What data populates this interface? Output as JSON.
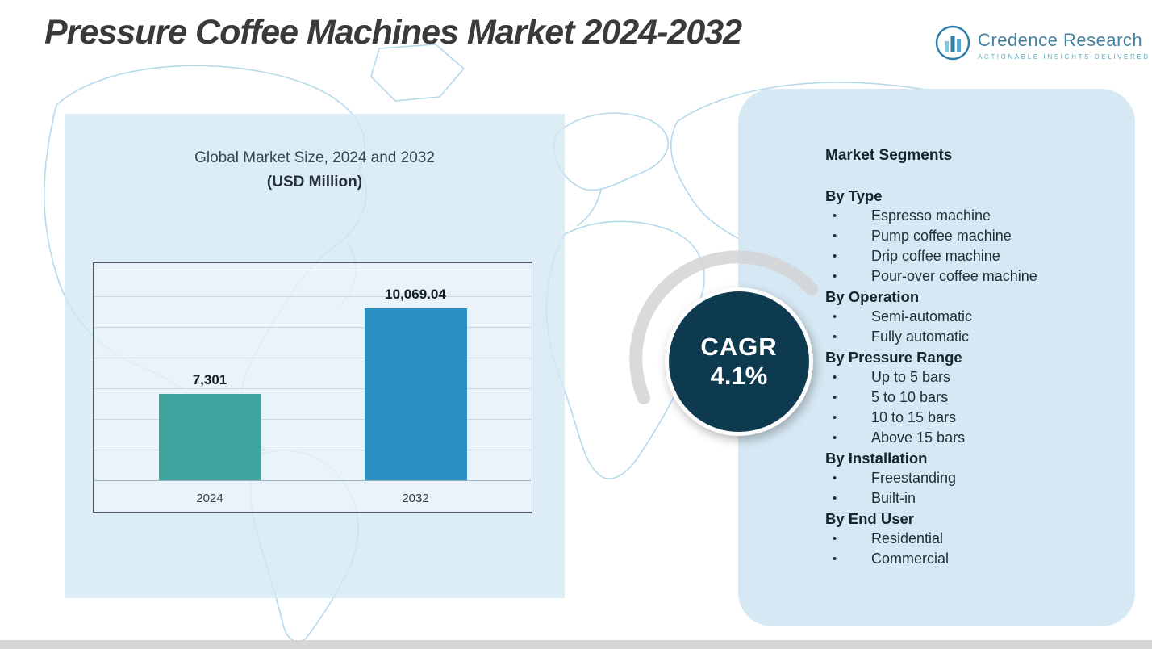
{
  "header": {
    "title": "Pressure Coffee Machines Market 2024-2032",
    "logo": {
      "name": "Credence Research",
      "tagline": "Actionable Insights Delivered"
    }
  },
  "chart_data": {
    "type": "bar",
    "title": "Global Market Size, 2024 and 2032",
    "subtitle": "(USD Million)",
    "categories": [
      "2024",
      "2032"
    ],
    "values": [
      7301,
      10069.04
    ],
    "data_labels": [
      "7,301",
      "10,069.04"
    ],
    "ylim": [
      4500,
      11500
    ],
    "grid": true,
    "legend": "none",
    "bar_colors": [
      "#3fa39e",
      "#2a8fc1"
    ]
  },
  "cagr": {
    "label": "CAGR",
    "value": "4.1%"
  },
  "segments": {
    "title": "Market Segments",
    "groups": [
      {
        "header": "By Type",
        "items": [
          "Espresso machine",
          "Pump coffee machine",
          "Drip coffee machine",
          "Pour-over coffee machine"
        ]
      },
      {
        "header": "By Operation",
        "items": [
          "Semi-automatic",
          "Fully automatic"
        ]
      },
      {
        "header": "By Pressure Range",
        "items": [
          "Up to 5 bars",
          "5 to 10 bars",
          "10 to 15 bars",
          "Above 15 bars"
        ]
      },
      {
        "header": "By Installation",
        "items": [
          "Freestanding",
          "Built-in"
        ]
      },
      {
        "header": "By End User",
        "items": [
          "Residential",
          "Commercial"
        ]
      }
    ]
  },
  "colors": {
    "panel_bg": "#d4e7f3",
    "cagr_circle": "#0d3a4e",
    "map_line": "#b5d9ea",
    "accent_teal": "#3fa39e",
    "accent_blue": "#2a8fc1",
    "text_dark": "#1d3038",
    "logo_blue": "#44809f"
  }
}
